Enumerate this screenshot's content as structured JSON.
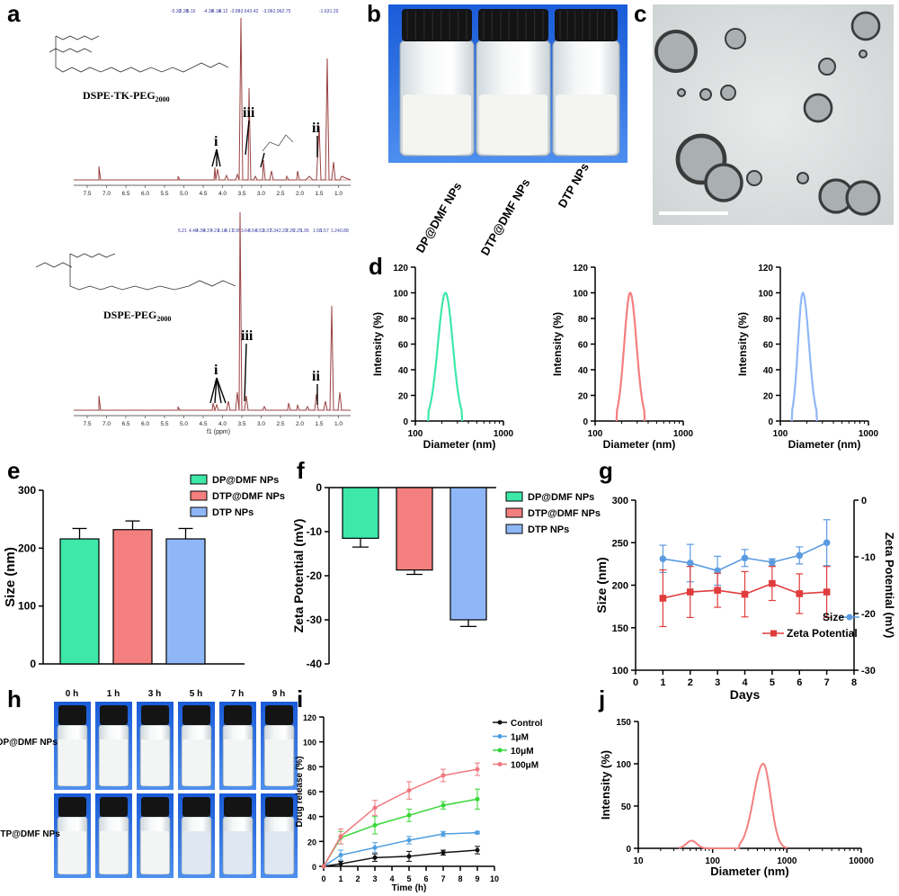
{
  "panel_labels": [
    "a",
    "b",
    "c",
    "d",
    "e",
    "f",
    "g",
    "h",
    "i",
    "j"
  ],
  "colors": {
    "green": "#3de8a8",
    "red": "#f47f7f",
    "blue": "#8fb7f7",
    "gblue": "#5b9be0",
    "gred": "#e03c3c",
    "nmr": "#9a4040",
    "black": "#111111",
    "i_blue": "#4f9ee0",
    "i_green": "#36d636",
    "i_pink": "#f0777f"
  },
  "panel_a": {
    "spectra": [
      {
        "compound": "DSPE-TK-PEG",
        "sub": "2000",
        "ann": [
          "i",
          "iii",
          "ii"
        ],
        "tick_labels": [
          "7.5",
          "7.0",
          "6.5",
          "6.0",
          "5.5",
          "5.0",
          "4.5",
          "4.0",
          "3.5",
          "3.0",
          "2.5",
          "2.0",
          "1.5",
          "1.0"
        ]
      },
      {
        "compound": "DSPE-PEG",
        "sub": "2000",
        "ann": [
          "i",
          "iii",
          "ii"
        ],
        "tick_labels": [
          "7.5",
          "7.0",
          "6.5",
          "6.0",
          "5.5",
          "5.0",
          "4.5",
          "4.0",
          "3.5",
          "3.0",
          "2.5",
          "2.0",
          "1.5",
          "1.0"
        ],
        "xlabel": "f1 (ppm)"
      }
    ]
  },
  "panel_b": {
    "samples": [
      "DP@DMF NPs",
      "DTP@DMF NPs",
      "DTP NPs"
    ]
  },
  "panel_d": {
    "ylabel": "Intensity (%)",
    "xlabel": "Diameter (nm)",
    "yticks": [
      "0",
      "20",
      "40",
      "60",
      "80",
      "100",
      "120"
    ],
    "xticks": [
      "100",
      "1000"
    ]
  },
  "panel_e": {
    "ylabel": "Size (nm)",
    "yticks": [
      "0",
      "100",
      "200",
      "300"
    ],
    "legend": [
      "DP@DMF NPs",
      "DTP@DMF NPs",
      "DTP NPs"
    ]
  },
  "panel_f": {
    "ylabel": "Zeta Potential (mV)",
    "yticks": [
      "0",
      "-10",
      "-20",
      "-30",
      "-40"
    ],
    "legend": [
      "DP@DMF NPs",
      "DTP@DMF NPs",
      "DTP NPs"
    ]
  },
  "panel_g": {
    "ylabel": "Size (nm)",
    "ylabel2": "Zeta Potential (mV)",
    "xlabel": "Days",
    "yticks": [
      "100",
      "150",
      "200",
      "250",
      "300"
    ],
    "y2ticks": [
      "0",
      "-10",
      "-20",
      "-30"
    ],
    "xticks": [
      "0",
      "1",
      "2",
      "3",
      "4",
      "5",
      "6",
      "7",
      "8"
    ],
    "legend": [
      "Size",
      "Zeta Potential"
    ]
  },
  "panel_h": {
    "times": [
      "0 h",
      "1 h",
      "3 h",
      "5 h",
      "7 h",
      "9 h"
    ],
    "rows": [
      "DP@DMF NPs",
      "DTP@DMF NPs"
    ]
  },
  "panel_i": {
    "ylabel": "Drug release (%)",
    "xlabel": "Time (h)",
    "yticks": [
      "0",
      "20",
      "40",
      "60",
      "80",
      "100",
      "120"
    ],
    "xticks": [
      "0",
      "1",
      "2",
      "3",
      "4",
      "5",
      "6",
      "7",
      "8",
      "9",
      "10"
    ],
    "legend": [
      "Control",
      "1μM",
      "10μM",
      "100μM"
    ]
  },
  "panel_j": {
    "ylabel": "Intensity (%)",
    "xlabel": "Diameter (nm)",
    "yticks": [
      "0",
      "50",
      "100",
      "150"
    ],
    "xticks": [
      "10",
      "100",
      "1000",
      "10000"
    ]
  },
  "chart_data": [
    {
      "panel": "d1",
      "type": "line",
      "series": [
        {
          "name": "DP@DMF NPs",
          "peak_nm": 220,
          "range_nm": [
            140,
            340
          ],
          "peak_value": 100
        }
      ],
      "xlabel": "Diameter (nm)",
      "ylabel": "Intensity (%)",
      "xscale": "log",
      "xlim": [
        100,
        1000
      ],
      "ylim": [
        0,
        120
      ]
    },
    {
      "panel": "d2",
      "type": "line",
      "series": [
        {
          "name": "DTP@DMF NPs",
          "peak_nm": 250,
          "range_nm": [
            175,
            365
          ],
          "peak_value": 100
        }
      ],
      "xlabel": "Diameter (nm)",
      "ylabel": "Intensity (%)",
      "xscale": "log",
      "xlim": [
        100,
        1000
      ],
      "ylim": [
        0,
        120
      ]
    },
    {
      "panel": "d3",
      "type": "line",
      "series": [
        {
          "name": "DTP NPs",
          "peak_nm": 180,
          "range_nm": [
            135,
            260
          ],
          "peak_value": 100
        }
      ],
      "xlabel": "Diameter (nm)",
      "ylabel": "Intensity (%)",
      "xscale": "log",
      "xlim": [
        100,
        1000
      ],
      "ylim": [
        0,
        120
      ]
    },
    {
      "panel": "e",
      "type": "bar",
      "categories": [
        "DP@DMF NPs",
        "DTP@DMF NPs",
        "DTP NPs"
      ],
      "values": [
        216,
        232,
        216
      ],
      "errors": [
        18,
        15,
        18
      ],
      "ylabel": "Size (nm)",
      "ylim": [
        0,
        300
      ]
    },
    {
      "panel": "f",
      "type": "bar",
      "categories": [
        "DP@DMF NPs",
        "DTP@DMF NPs",
        "DTP NPs"
      ],
      "values": [
        -11.5,
        -18.7,
        -30
      ],
      "errors": [
        2,
        1,
        1.5
      ],
      "ylabel": "Zeta Potential (mV)",
      "ylim": [
        -40,
        0
      ]
    },
    {
      "panel": "g",
      "type": "line",
      "x": [
        1,
        2,
        3,
        4,
        5,
        6,
        7
      ],
      "series": [
        {
          "name": "Size",
          "axis": "left",
          "values": [
            231,
            226,
            217,
            232,
            227,
            235,
            250
          ],
          "errors": [
            16,
            22,
            17,
            10,
            4,
            10,
            27
          ]
        },
        {
          "name": "Zeta Potential",
          "axis": "right",
          "values": [
            -17.3,
            -16.2,
            -15.9,
            -16.6,
            -14.7,
            -16.5,
            -16.2
          ],
          "errors": [
            5,
            4.5,
            3,
            4,
            3,
            3.5,
            4.5
          ]
        }
      ],
      "xlabel": "Days",
      "ylabel": "Size (nm)",
      "ylabel2": "Zeta Potential (mV)",
      "xlim": [
        0,
        8
      ],
      "ylim": [
        100,
        300
      ],
      "ylim2": [
        -30,
        0
      ]
    },
    {
      "panel": "i",
      "type": "line",
      "x": [
        0,
        1,
        3,
        5,
        7,
        9
      ],
      "series": [
        {
          "name": "Control",
          "values": [
            0,
            2,
            7,
            8,
            11,
            13
          ],
          "errors": [
            0,
            2,
            3,
            4,
            2,
            3
          ]
        },
        {
          "name": "1μM",
          "values": [
            0,
            9,
            15,
            21,
            26,
            27
          ],
          "errors": [
            0,
            4,
            4,
            3,
            2,
            1
          ]
        },
        {
          "name": "10μM",
          "values": [
            0,
            23,
            33,
            41,
            49,
            54
          ],
          "errors": [
            0,
            5,
            7,
            5,
            3,
            8
          ]
        },
        {
          "name": "100μM",
          "values": [
            0,
            24,
            47,
            61,
            73,
            78
          ],
          "errors": [
            0,
            6,
            6,
            7,
            5,
            5
          ]
        }
      ],
      "xlabel": "Time (h)",
      "ylabel": "Drug release (%)",
      "xlim": [
        0,
        10
      ],
      "ylim": [
        0,
        120
      ]
    },
    {
      "panel": "j",
      "type": "line",
      "series": [
        {
          "name": "",
          "peaks": [
            {
              "nm": 52,
              "value": 9
            },
            {
              "nm": 480,
              "value": 100
            }
          ]
        }
      ],
      "xlabel": "Diameter (nm)",
      "ylabel": "Intensity (%)",
      "xscale": "log",
      "xlim": [
        10,
        10000
      ],
      "ylim": [
        0,
        150
      ]
    }
  ]
}
